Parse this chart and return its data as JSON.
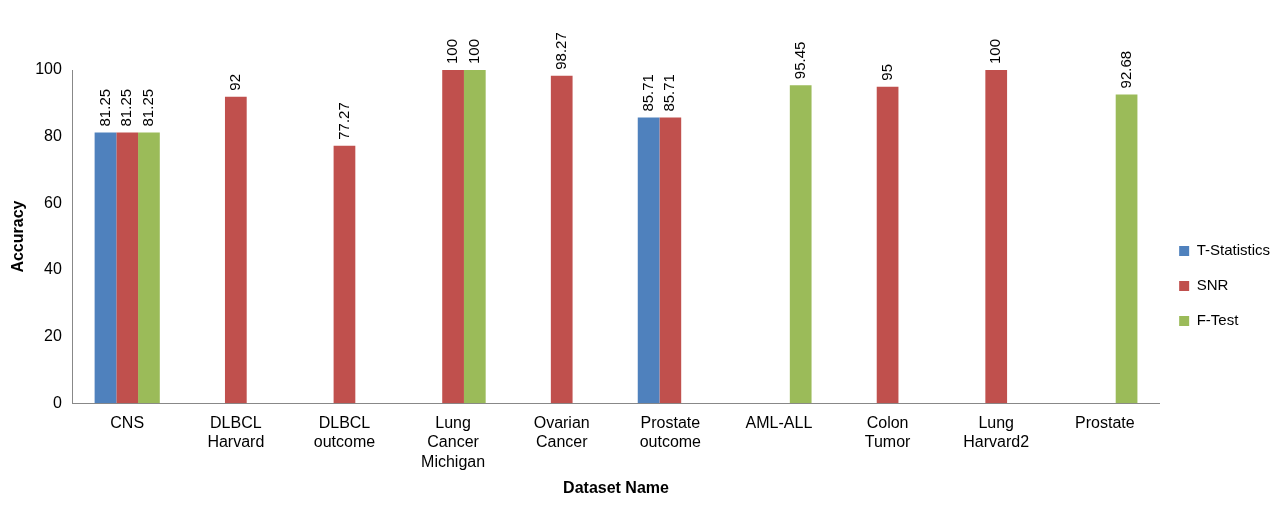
{
  "chart_data": {
    "type": "bar",
    "xlabel": "Dataset Name",
    "ylabel": "Accuracy",
    "categories": [
      "CNS",
      "DLBCL Harvard",
      "DLBCL outcome",
      "Lung Cancer Michigan",
      "Ovarian Cancer",
      "Prostate outcome",
      "AML-ALL",
      "Colon Tumor",
      "Lung Harvard2",
      "Prostate"
    ],
    "series": [
      {
        "name": "T-Statistics",
        "color": "#4f81bd",
        "values": [
          81.25,
          null,
          null,
          null,
          null,
          85.71,
          null,
          null,
          null,
          null
        ]
      },
      {
        "name": "SNR",
        "color": "#c0504d",
        "values": [
          81.25,
          92,
          77.27,
          100,
          98.27,
          85.71,
          null,
          95,
          100,
          null
        ]
      },
      {
        "name": "F-Test",
        "color": "#9bbb59",
        "values": [
          81.25,
          null,
          null,
          100,
          null,
          null,
          95.45,
          null,
          null,
          92.68
        ]
      }
    ],
    "ylim": [
      0,
      100
    ],
    "yticks": [
      0,
      20,
      40,
      60,
      80,
      100
    ],
    "grid": false,
    "legend": "right",
    "data_labels": true
  }
}
